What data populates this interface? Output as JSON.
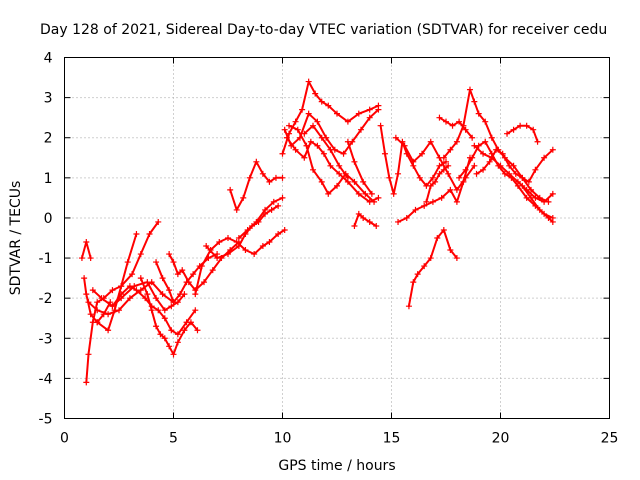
{
  "chart_data": {
    "type": "scatter",
    "title": "Day 128 of 2021, Sidereal Day-to-day VTEC variation (SDTVAR) for receiver cedu",
    "xlabel": "GPS time / hours",
    "ylabel": "SDTVAR / TECUs",
    "xlim": [
      0,
      25
    ],
    "ylim": [
      -5,
      4
    ],
    "xticks": [
      0,
      5,
      10,
      15,
      20,
      25
    ],
    "yticks": [
      -5,
      -4,
      -3,
      -2,
      -1,
      0,
      1,
      2,
      3,
      4
    ],
    "grid": true,
    "marker": "+",
    "color": "#ff0000",
    "series": [
      {
        "x": [
          0.8,
          1.0,
          1.2
        ],
        "values": [
          -1.0,
          -0.6,
          -1.0
        ]
      },
      {
        "x": [
          0.9,
          1.0,
          1.2,
          1.5,
          1.8,
          2.1
        ],
        "values": [
          -1.5,
          -1.9,
          -2.4,
          -2.6,
          -2.4,
          -2.1
        ]
      },
      {
        "x": [
          1.0,
          1.1,
          1.3,
          1.5,
          1.8,
          2.2,
          2.6,
          3.1,
          3.5,
          3.9,
          4.3
        ],
        "values": [
          -4.1,
          -3.4,
          -2.6,
          -2.1,
          -2.0,
          -1.8,
          -1.7,
          -1.4,
          -0.9,
          -0.4,
          -0.1
        ]
      },
      {
        "x": [
          1.1,
          1.5,
          2.0,
          2.5,
          3.0,
          3.5,
          4.0,
          4.5,
          5.0
        ],
        "values": [
          -2.1,
          -2.3,
          -2.4,
          -2.3,
          -2.0,
          -1.8,
          -1.6,
          -1.9,
          -2.1
        ]
      },
      {
        "x": [
          1.3,
          1.7,
          2.2,
          2.6,
          3.2,
          3.8,
          4.2,
          4.6,
          4.9,
          5.2,
          5.5
        ],
        "values": [
          -1.8,
          -2.0,
          -2.2,
          -2.0,
          -1.7,
          -1.6,
          -2.0,
          -2.3,
          -2.2,
          -2.1,
          -1.9
        ]
      },
      {
        "x": [
          1.5,
          2.0,
          2.3,
          2.6,
          2.9,
          3.3
        ],
        "values": [
          -2.6,
          -2.8,
          -2.3,
          -1.7,
          -1.1,
          -0.4
        ]
      },
      {
        "x": [
          2.2,
          2.6,
          3.0,
          3.3,
          3.7,
          4.0,
          4.3,
          4.6,
          4.9,
          5.2,
          5.6,
          6.0
        ],
        "values": [
          -2.2,
          -1.9,
          -1.7,
          -1.8,
          -2.0,
          -2.2,
          -2.3,
          -2.5,
          -2.8,
          -2.9,
          -2.6,
          -2.3
        ]
      },
      {
        "x": [
          3.5,
          3.8,
          4.0,
          4.2,
          4.4,
          4.6,
          4.8,
          5.0,
          5.2,
          5.5,
          5.8,
          6.1
        ],
        "values": [
          -1.5,
          -1.9,
          -2.3,
          -2.7,
          -2.9,
          -3.0,
          -3.2,
          -3.4,
          -3.1,
          -2.8,
          -2.6,
          -2.8
        ]
      },
      {
        "x": [
          4.2,
          4.5,
          4.8,
          5.0,
          5.3,
          5.6,
          5.9,
          6.2,
          6.6,
          7.0
        ],
        "values": [
          -1.1,
          -1.5,
          -1.8,
          -2.1,
          -1.9,
          -1.6,
          -1.4,
          -1.2,
          -1.0,
          -0.9
        ]
      },
      {
        "x": [
          4.8,
          5.0,
          5.2,
          5.4,
          5.7,
          6.0,
          6.4,
          6.8,
          7.2,
          7.6,
          8.0
        ],
        "values": [
          -0.9,
          -1.1,
          -1.4,
          -1.3,
          -1.6,
          -1.8,
          -1.6,
          -1.3,
          -1.0,
          -0.8,
          -0.6
        ]
      },
      {
        "x": [
          6.0,
          6.3,
          6.7,
          7.1,
          7.5,
          7.9,
          8.3,
          8.7,
          9.1,
          9.4,
          9.8,
          10.1
        ],
        "values": [
          -1.9,
          -1.2,
          -0.8,
          -0.6,
          -0.5,
          -0.6,
          -0.8,
          -0.9,
          -0.7,
          -0.6,
          -0.4,
          -0.3
        ]
      },
      {
        "x": [
          6.5,
          7.0,
          7.5,
          8.0,
          8.3,
          8.6,
          8.9,
          9.2,
          9.5,
          9.8
        ],
        "values": [
          -0.7,
          -1.0,
          -0.9,
          -0.7,
          -0.4,
          -0.2,
          -0.1,
          0.1,
          0.2,
          0.3
        ]
      },
      {
        "x": [
          7.6,
          7.9,
          8.2,
          8.5,
          8.8,
          9.1,
          9.4,
          9.7,
          10.0
        ],
        "values": [
          0.7,
          0.2,
          0.5,
          1.0,
          1.4,
          1.1,
          0.9,
          1.0,
          1.0
        ]
      },
      {
        "x": [
          8.0,
          8.4,
          8.8,
          9.2,
          9.6,
          10.0
        ],
        "values": [
          -0.5,
          -0.3,
          -0.1,
          0.2,
          0.4,
          0.5
        ]
      },
      {
        "x": [
          10.0,
          10.3,
          10.6,
          10.9,
          11.2,
          11.5,
          11.8,
          12.1,
          12.5,
          13.0,
          13.5,
          14.0,
          14.4
        ],
        "values": [
          1.6,
          2.1,
          2.4,
          2.7,
          3.4,
          3.1,
          2.9,
          2.8,
          2.6,
          2.4,
          2.6,
          2.7,
          2.8
        ]
      },
      {
        "x": [
          10.1,
          10.4,
          10.8,
          11.2,
          11.6,
          12.0,
          12.4,
          12.8,
          13.2,
          13.6,
          14.0,
          14.4
        ],
        "values": [
          2.2,
          1.8,
          2.0,
          2.6,
          2.4,
          2.0,
          1.7,
          1.6,
          1.9,
          2.2,
          2.5,
          2.7
        ]
      },
      {
        "x": [
          10.2,
          10.6,
          11.0,
          11.3,
          11.6,
          11.9,
          12.2,
          12.6,
          13.0,
          13.5,
          14.0,
          14.4
        ],
        "values": [
          2.0,
          1.7,
          1.5,
          1.9,
          1.8,
          1.6,
          1.3,
          1.1,
          0.9,
          0.6,
          0.4,
          0.5
        ]
      },
      {
        "x": [
          10.3,
          10.7,
          11.1,
          11.4,
          11.8,
          12.1,
          12.5,
          12.9,
          13.3,
          13.8,
          14.2
        ],
        "values": [
          2.3,
          2.2,
          1.8,
          1.2,
          0.9,
          0.6,
          0.8,
          1.1,
          0.9,
          0.6,
          0.4
        ]
      },
      {
        "x": [
          11.0,
          11.4,
          11.8,
          12.2,
          12.6,
          13.0
        ],
        "values": [
          2.1,
          2.3,
          2.0,
          1.7,
          1.3,
          1.0
        ]
      },
      {
        "x": [
          13.3,
          13.5,
          13.7,
          14.0,
          14.3
        ],
        "values": [
          -0.2,
          0.1,
          0.0,
          -0.1,
          -0.2
        ]
      },
      {
        "x": [
          13.0,
          13.3,
          13.7,
          14.1
        ],
        "values": [
          1.9,
          1.4,
          0.9,
          0.6
        ]
      },
      {
        "x": [
          14.5,
          14.7,
          14.9,
          15.1,
          15.3,
          15.5,
          15.7,
          16.0,
          16.3,
          16.6,
          16.9,
          17.2,
          17.5
        ],
        "values": [
          2.3,
          1.6,
          1.0,
          0.6,
          1.1,
          1.9,
          1.6,
          1.3,
          1.0,
          0.8,
          1.0,
          1.3,
          1.4
        ]
      },
      {
        "x": [
          15.2,
          15.6,
          16.0,
          16.4,
          16.8,
          17.2,
          17.6,
          18.0,
          18.4,
          18.8
        ],
        "values": [
          2.0,
          1.8,
          1.4,
          1.6,
          1.9,
          1.5,
          1.1,
          0.7,
          1.0,
          1.3
        ]
      },
      {
        "x": [
          15.3,
          15.7,
          16.1,
          16.5,
          16.9,
          17.3,
          17.7,
          18.0,
          18.3,
          18.6
        ],
        "values": [
          -0.1,
          0.0,
          0.2,
          0.3,
          0.4,
          0.5,
          0.7,
          0.4,
          0.9,
          1.5
        ]
      },
      {
        "x": [
          15.8,
          16.0,
          16.2,
          16.5,
          16.8,
          17.1,
          17.4,
          17.7,
          18.0
        ],
        "values": [
          -2.2,
          -1.6,
          -1.4,
          -1.2,
          -1.0,
          -0.5,
          -0.3,
          -0.8,
          -1.0
        ]
      },
      {
        "x": [
          16.6,
          16.8,
          17.0,
          17.2,
          17.4,
          17.6
        ],
        "values": [
          0.4,
          0.8,
          0.9,
          1.1,
          1.2,
          1.3
        ]
      },
      {
        "x": [
          17.4,
          17.7,
          18.0,
          18.3,
          18.6,
          18.8,
          19.0,
          19.3,
          19.6,
          19.9,
          20.2,
          20.6,
          21.0,
          21.4,
          21.8,
          22.2
        ],
        "values": [
          1.5,
          1.7,
          1.9,
          2.3,
          3.2,
          2.9,
          2.6,
          2.4,
          2.0,
          1.7,
          1.5,
          1.3,
          1.0,
          0.7,
          0.5,
          0.4
        ]
      },
      {
        "x": [
          17.2,
          17.5,
          17.8,
          18.1,
          18.4,
          18.7
        ],
        "values": [
          2.5,
          2.4,
          2.3,
          2.4,
          2.2,
          2.0
        ]
      },
      {
        "x": [
          18.1,
          18.4,
          18.7,
          19.0,
          19.3,
          19.6,
          19.9,
          20.2,
          20.5,
          20.8,
          21.2,
          21.6,
          22.0,
          22.4
        ],
        "values": [
          1.0,
          1.2,
          1.5,
          1.8,
          1.9,
          1.6,
          1.3,
          1.1,
          1.0,
          0.8,
          0.5,
          0.3,
          0.1,
          0.0
        ]
      },
      {
        "x": [
          18.8,
          19.2,
          19.6,
          20.0,
          20.4,
          20.8,
          21.2,
          21.6,
          22.0,
          22.4
        ],
        "values": [
          1.8,
          1.6,
          1.5,
          1.3,
          1.1,
          0.9,
          0.7,
          0.5,
          0.4,
          0.6
        ]
      },
      {
        "x": [
          18.9,
          19.2,
          19.5,
          19.8,
          20.1,
          20.4,
          20.7,
          21.0,
          21.3,
          21.6,
          22.0,
          22.4
        ],
        "values": [
          1.1,
          1.2,
          1.4,
          1.7,
          1.6,
          1.3,
          1.1,
          1.0,
          0.9,
          1.2,
          1.5,
          1.7
        ]
      },
      {
        "x": [
          20.3,
          20.6,
          20.9,
          21.2,
          21.5,
          21.7
        ],
        "values": [
          2.1,
          2.2,
          2.3,
          2.3,
          2.2,
          1.9
        ]
      },
      {
        "x": [
          21.0,
          21.4,
          21.8,
          22.2,
          22.4
        ],
        "values": [
          0.8,
          0.5,
          0.2,
          0.0,
          -0.1
        ]
      }
    ]
  }
}
